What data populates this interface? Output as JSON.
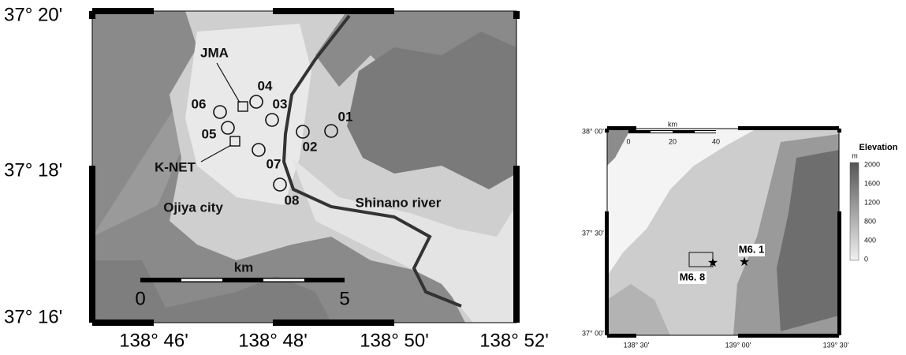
{
  "left_map": {
    "lat_labels": [
      "37° 20'",
      "37° 18'",
      "37° 16'"
    ],
    "lon_labels": [
      "138° 46'",
      "138° 48'",
      "138° 50'",
      "138° 52'"
    ],
    "stations": [
      {
        "label": "04"
      },
      {
        "label": "06"
      },
      {
        "label": "03"
      },
      {
        "label": "05"
      },
      {
        "label": "01"
      },
      {
        "label": "02"
      },
      {
        "label": "07"
      },
      {
        "label": "08"
      }
    ],
    "instruments": [
      "JMA",
      "K-NET"
    ],
    "city_label": "Ojiya city",
    "river_label": "Shinano river",
    "scale": {
      "unit": "km",
      "start": "0",
      "end": "5"
    }
  },
  "right_map": {
    "lat_labels": [
      "38° 00'",
      "37° 30'",
      "37° 00'"
    ],
    "lon_labels": [
      "138° 30'",
      "139° 00'",
      "139° 30'"
    ],
    "scale": {
      "unit": "km",
      "ticks": [
        "0",
        "20",
        "40"
      ]
    },
    "events": [
      "M6. 1",
      "M6. 8"
    ],
    "colorbar": {
      "title": "Elevation",
      "unit": "m",
      "ticks": [
        "2000",
        "1600",
        "1200",
        "800",
        "400",
        "0"
      ]
    }
  }
}
